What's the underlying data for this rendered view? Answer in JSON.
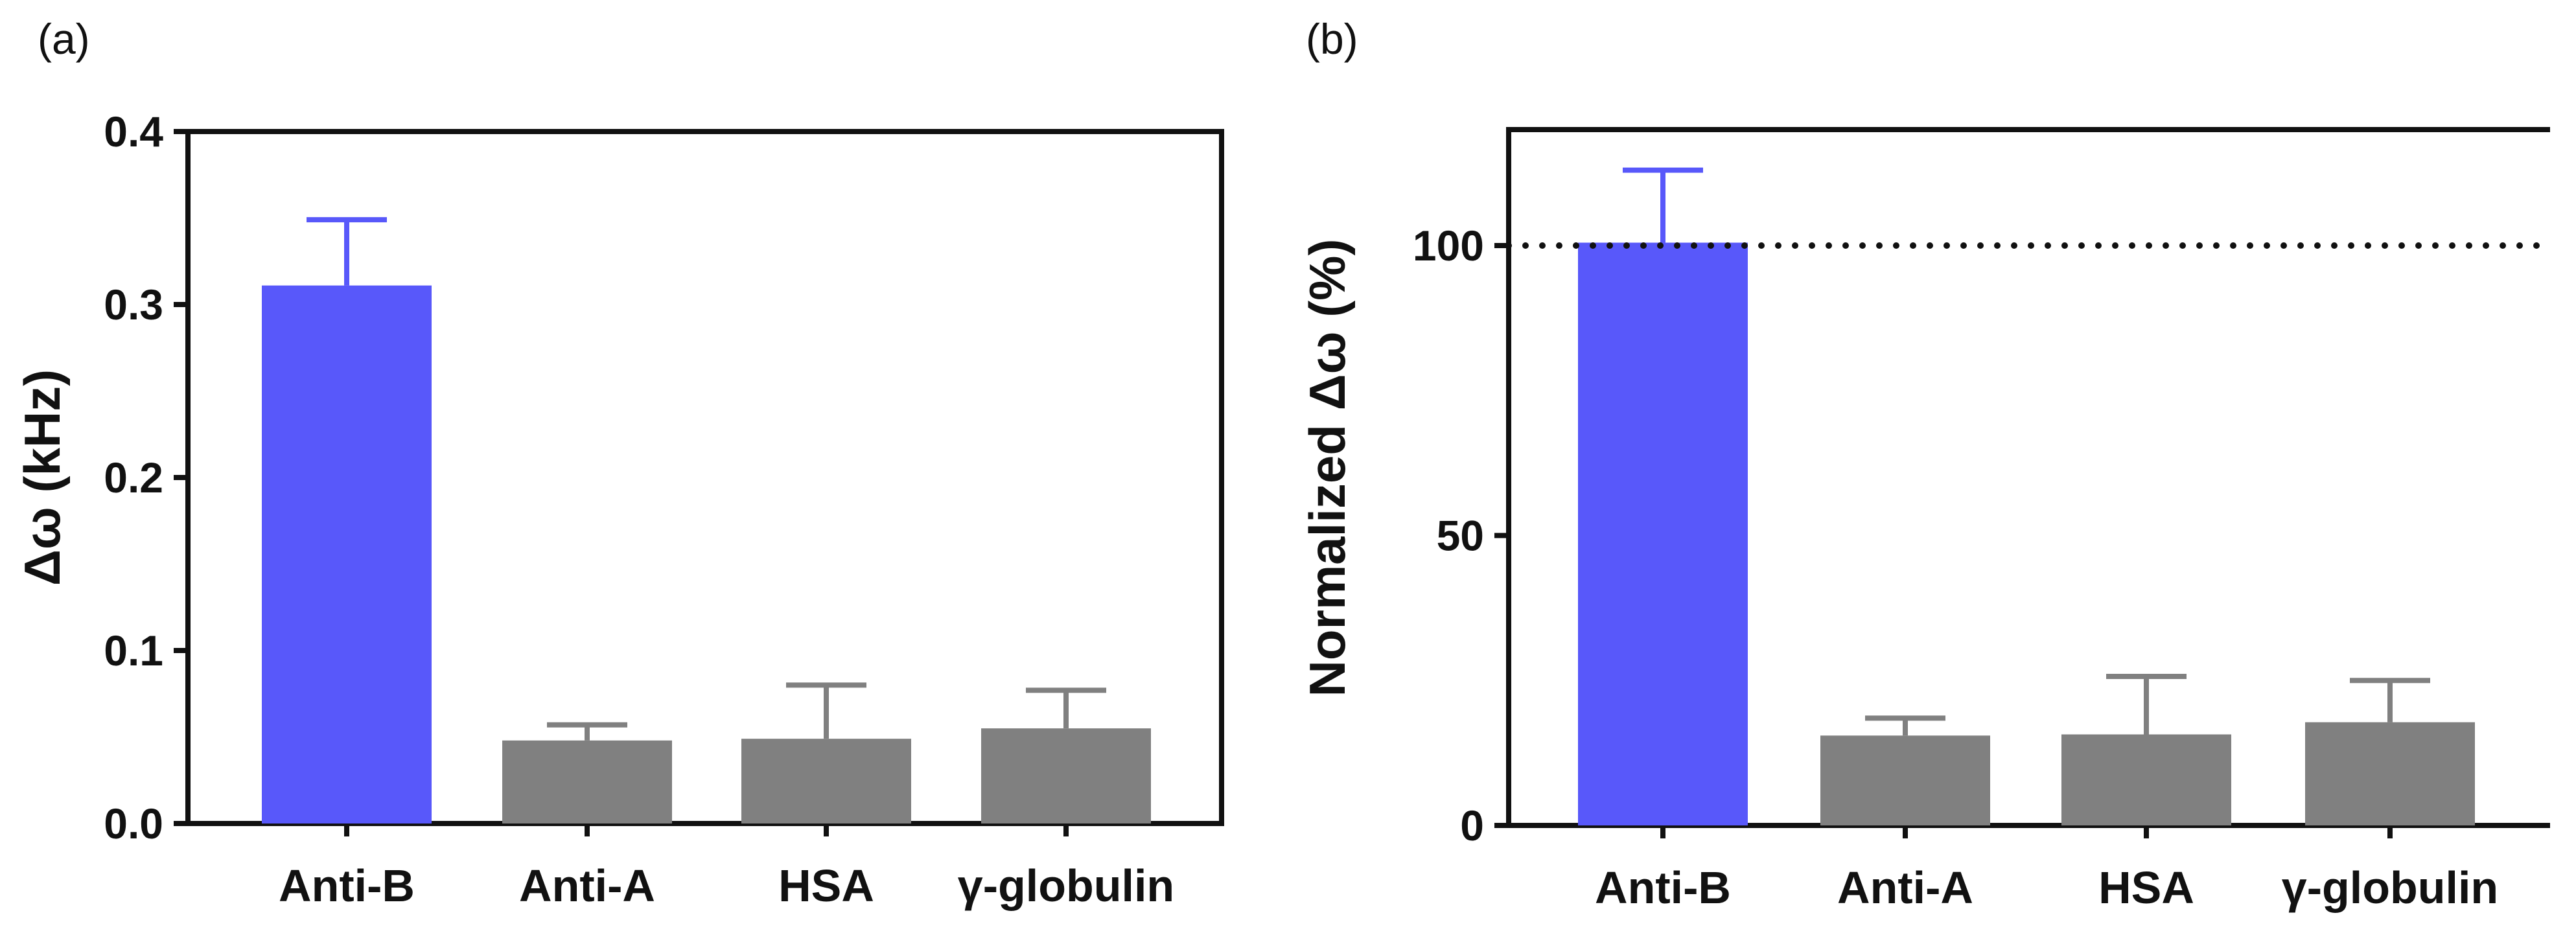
{
  "chart_data": [
    {
      "panel": "(a)",
      "type": "bar",
      "categories": [
        "Anti-B",
        "Anti-A",
        "HSA",
        "γ-globulin"
      ],
      "values": [
        0.311,
        0.048,
        0.049,
        0.055
      ],
      "errors": [
        0.038,
        0.009,
        0.031,
        0.022
      ],
      "colors": [
        "#5858fa",
        "#808080",
        "#808080",
        "#808080"
      ],
      "ylabel": "Δω (kHz)",
      "xlabel": "",
      "ylim": [
        0,
        0.4
      ],
      "yticks": [
        0.0,
        0.1,
        0.2,
        0.3,
        0.4
      ],
      "ytick_labels": [
        "0.0",
        "0.1",
        "0.2",
        "0.3",
        "0.4"
      ],
      "grid": false
    },
    {
      "panel": "(b)",
      "type": "bar",
      "categories": [
        "Anti-B",
        "Anti-A",
        "HSA",
        "γ-globulin"
      ],
      "values": [
        100.5,
        15.5,
        15.7,
        17.8
      ],
      "errors": [
        12.5,
        3.0,
        10.0,
        7.2
      ],
      "colors": [
        "#5858fa",
        "#808080",
        "#808080",
        "#808080"
      ],
      "ylabel": "Normalized Δω (%)",
      "xlabel": "",
      "ylim": [
        0,
        120
      ],
      "yticks": [
        0,
        50,
        100
      ],
      "ytick_labels": [
        "0",
        "50",
        "100"
      ],
      "reference_line": 100,
      "grid": false
    }
  ]
}
